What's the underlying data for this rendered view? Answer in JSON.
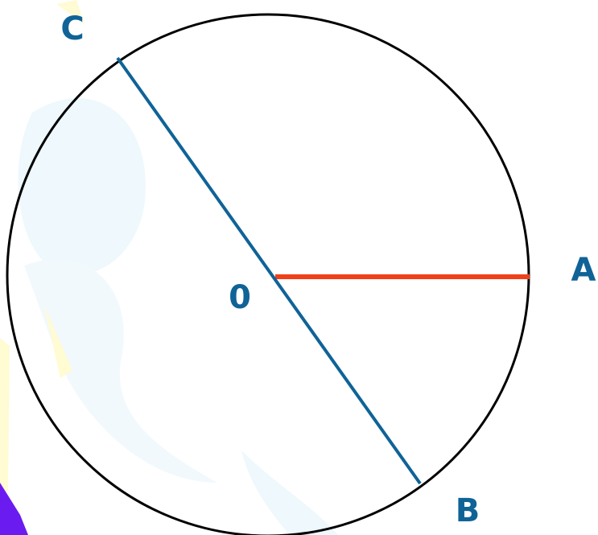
{
  "nodes": [
    {
      "label": "C"
    },
    {
      "label": "A"
    },
    {
      "label": "0"
    },
    {
      "label": "B"
    }
  ]
}
